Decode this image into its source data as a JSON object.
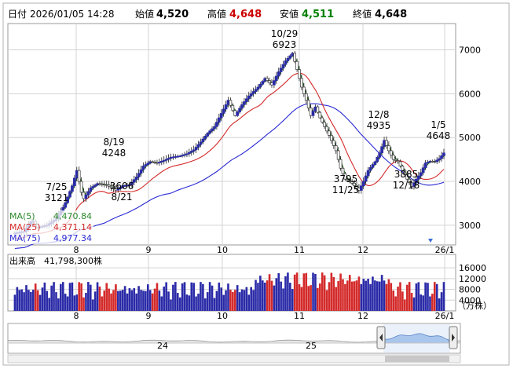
{
  "header": {
    "date_label": "日付",
    "date": "2026/01/05 14:28",
    "open_label": "始値",
    "open": "4,520",
    "high_label": "高値",
    "high": "4,648",
    "low_label": "安値",
    "low": "4,511",
    "close_label": "終値",
    "close": "4,648"
  },
  "colors": {
    "up": "#2a2aa8",
    "down": "#d42a2a",
    "ma5": "#2b8a2b",
    "ma25": "#d42a2a",
    "ma75": "#2a2ad4",
    "high_text": "#cc0000",
    "low_text": "#008000",
    "grid": "#d3d3d3",
    "navigator_fill": "#a9c6ec"
  },
  "ma_legend": [
    {
      "name": "MA(5)",
      "value": "4,470.84"
    },
    {
      "name": "MA(25)",
      "value": "4,371.14"
    },
    {
      "name": "MA(75)",
      "value": "4,977.34"
    }
  ],
  "volume": {
    "label": "出来高",
    "value": "41,798,300株",
    "unit": "（万株）",
    "yticks": [
      "16000",
      "12000",
      "8000",
      "4000"
    ]
  },
  "chart_data": {
    "type": "candlestick",
    "price_axis": {
      "ylim": [
        2550,
        7600
      ],
      "ticks": [
        "7000",
        "6000",
        "5000",
        "4000",
        "3000"
      ],
      "position": "right",
      "grid": true
    },
    "x_axis": {
      "ticks": [
        "8",
        "9",
        "10",
        "11",
        "12",
        "26/1"
      ]
    },
    "annotations": [
      {
        "date": "7/25",
        "price": "3121"
      },
      {
        "date": "8/19",
        "price": "4248"
      },
      {
        "date": "8/21",
        "price": "3606"
      },
      {
        "date": "10/29",
        "price": "6923"
      },
      {
        "date": "11/25",
        "price": "3795"
      },
      {
        "date": "12/8",
        "price": "4935"
      },
      {
        "date": "12/18",
        "price": "3885"
      },
      {
        "date": "1/5",
        "price": "4648"
      }
    ],
    "navigator": {
      "labels": [
        "24",
        "25"
      ]
    }
  }
}
